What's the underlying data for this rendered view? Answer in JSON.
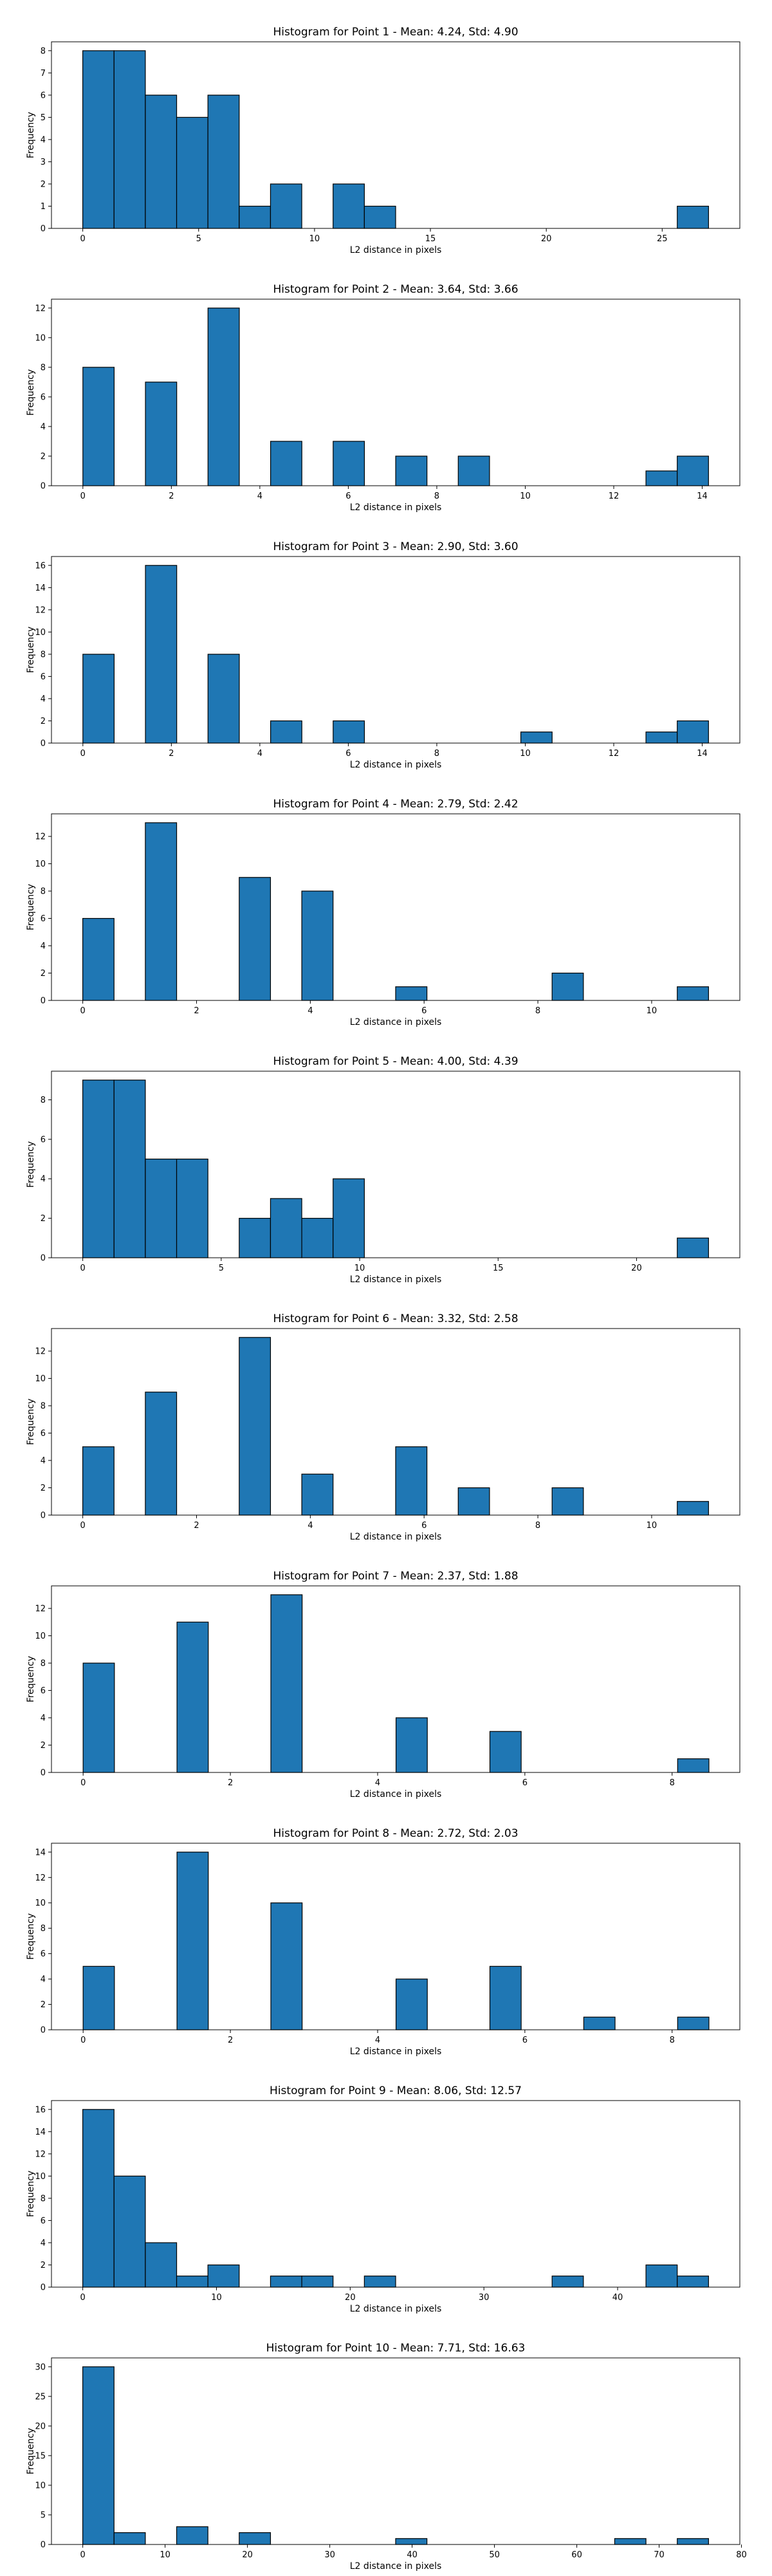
{
  "figure": {
    "background": "#ffffff",
    "bar_color": "#1f77b4",
    "edge_color": "#000000"
  },
  "chart_data": [
    {
      "type": "bar",
      "title": "Histogram for Point 1 - Mean: 4.24, Std: 4.90",
      "xlabel": "L2 distance in pixels",
      "ylabel": "Frequency",
      "xlim": [
        -1.35,
        28.35
      ],
      "ylim": [
        0,
        8.4
      ],
      "xticks": [
        0,
        5,
        10,
        15,
        20,
        25
      ],
      "yticks": [
        0,
        1,
        2,
        3,
        4,
        5,
        6,
        7,
        8
      ],
      "bin_edges": [
        0,
        1.35,
        2.7,
        4.05,
        5.4,
        6.75,
        8.1,
        9.45,
        10.8,
        12.15,
        13.5,
        14.85,
        16.2,
        17.55,
        18.9,
        20.25,
        21.6,
        22.95,
        24.3,
        25.65,
        27
      ],
      "values": [
        8,
        8,
        6,
        5,
        6,
        1,
        2,
        0,
        2,
        1,
        0,
        0,
        0,
        0,
        0,
        0,
        0,
        0,
        0,
        1
      ]
    },
    {
      "type": "bar",
      "title": "Histogram for Point 2 - Mean: 3.64, Std: 3.66",
      "xlabel": "L2 distance in pixels",
      "ylabel": "Frequency",
      "xlim": [
        -0.71,
        14.85
      ],
      "ylim": [
        0,
        12.6
      ],
      "xticks": [
        0,
        2,
        4,
        6,
        8,
        10,
        12,
        14
      ],
      "yticks": [
        0,
        2,
        4,
        6,
        8,
        10,
        12
      ],
      "bin_edges": [
        0,
        0.707,
        1.414,
        2.121,
        2.828,
        3.536,
        4.243,
        4.95,
        5.657,
        6.364,
        7.071,
        7.778,
        8.485,
        9.192,
        9.899,
        10.607,
        11.314,
        12.021,
        12.728,
        13.435,
        14.142
      ],
      "values": [
        8,
        0,
        7,
        0,
        12,
        0,
        3,
        0,
        3,
        0,
        2,
        0,
        2,
        0,
        0,
        0,
        0,
        0,
        1,
        2
      ]
    },
    {
      "type": "bar",
      "title": "Histogram for Point 3 - Mean: 2.90, Std: 3.60",
      "xlabel": "L2 distance in pixels",
      "ylabel": "Frequency",
      "xlim": [
        -0.71,
        14.85
      ],
      "ylim": [
        0,
        16.8
      ],
      "xticks": [
        0,
        2,
        4,
        6,
        8,
        10,
        12,
        14
      ],
      "yticks": [
        0,
        2,
        4,
        6,
        8,
        10,
        12,
        14,
        16
      ],
      "bin_edges": [
        0,
        0.707,
        1.414,
        2.121,
        2.828,
        3.536,
        4.243,
        4.95,
        5.657,
        6.364,
        7.071,
        7.778,
        8.485,
        9.192,
        9.899,
        10.607,
        11.314,
        12.021,
        12.728,
        13.435,
        14.142
      ],
      "values": [
        8,
        0,
        16,
        0,
        8,
        0,
        2,
        0,
        2,
        0,
        0,
        0,
        0,
        0,
        1,
        0,
        0,
        0,
        1,
        2
      ]
    },
    {
      "type": "bar",
      "title": "Histogram for Point 4 - Mean: 2.79, Std: 2.42",
      "xlabel": "L2 distance in pixels",
      "ylabel": "Frequency",
      "xlim": [
        -0.55,
        11.55
      ],
      "ylim": [
        0,
        13.65
      ],
      "xticks": [
        0,
        2,
        4,
        6,
        8,
        10
      ],
      "yticks": [
        0,
        2,
        4,
        6,
        8,
        10,
        12
      ],
      "bin_edges": [
        0,
        0.55,
        1.1,
        1.65,
        2.2,
        2.75,
        3.3,
        3.85,
        4.4,
        4.95,
        5.5,
        6.05,
        6.6,
        7.15,
        7.7,
        8.25,
        8.8,
        9.35,
        9.9,
        10.45,
        11
      ],
      "values": [
        6,
        0,
        13,
        0,
        0,
        9,
        0,
        8,
        0,
        0,
        1,
        0,
        0,
        0,
        0,
        2,
        0,
        0,
        0,
        1
      ]
    },
    {
      "type": "bar",
      "title": "Histogram for Point 5 - Mean: 4.00, Std: 4.39",
      "xlabel": "L2 distance in pixels",
      "ylabel": "Frequency",
      "xlim": [
        -1.13,
        23.73
      ],
      "ylim": [
        0,
        9.45
      ],
      "xticks": [
        0,
        5,
        10,
        15,
        20
      ],
      "yticks": [
        0,
        2,
        4,
        6,
        8
      ],
      "bin_edges": [
        0,
        1.13,
        2.26,
        3.39,
        4.52,
        5.65,
        6.78,
        7.91,
        9.04,
        10.17,
        11.3,
        12.43,
        13.56,
        14.69,
        15.82,
        16.95,
        18.08,
        19.21,
        20.34,
        21.47,
        22.6
      ],
      "values": [
        9,
        9,
        5,
        5,
        0,
        2,
        3,
        2,
        4,
        0,
        0,
        0,
        0,
        0,
        0,
        0,
        0,
        0,
        0,
        1
      ]
    },
    {
      "type": "bar",
      "title": "Histogram for Point 6 - Mean: 3.32, Std: 2.58",
      "xlabel": "L2 distance in pixels",
      "ylabel": "Frequency",
      "xlim": [
        -0.55,
        11.55
      ],
      "ylim": [
        0,
        13.65
      ],
      "xticks": [
        0,
        2,
        4,
        6,
        8,
        10
      ],
      "yticks": [
        0,
        2,
        4,
        6,
        8,
        10,
        12
      ],
      "bin_edges": [
        0,
        0.55,
        1.1,
        1.65,
        2.2,
        2.75,
        3.3,
        3.85,
        4.4,
        4.95,
        5.5,
        6.05,
        6.6,
        7.15,
        7.7,
        8.25,
        8.8,
        9.35,
        9.9,
        10.45,
        11
      ],
      "values": [
        5,
        0,
        9,
        0,
        0,
        13,
        0,
        3,
        0,
        0,
        5,
        0,
        2,
        0,
        0,
        2,
        0,
        0,
        0,
        1
      ]
    },
    {
      "type": "bar",
      "title": "Histogram for Point 7 - Mean: 2.37, Std: 1.88",
      "xlabel": "L2 distance in pixels",
      "ylabel": "Frequency",
      "xlim": [
        -0.43,
        8.92
      ],
      "ylim": [
        0,
        13.65
      ],
      "xticks": [
        0,
        2,
        4,
        6,
        8
      ],
      "yticks": [
        0,
        2,
        4,
        6,
        8,
        10,
        12
      ],
      "bin_edges": [
        0,
        0.425,
        0.85,
        1.275,
        1.7,
        2.125,
        2.55,
        2.975,
        3.4,
        3.825,
        4.25,
        4.675,
        5.1,
        5.525,
        5.95,
        6.375,
        6.8,
        7.225,
        7.65,
        8.075,
        8.5
      ],
      "values": [
        8,
        0,
        0,
        11,
        0,
        0,
        13,
        0,
        0,
        0,
        4,
        0,
        0,
        3,
        0,
        0,
        0,
        0,
        0,
        1
      ]
    },
    {
      "type": "bar",
      "title": "Histogram for Point 8 - Mean: 2.72, Std: 2.03",
      "xlabel": "L2 distance in pixels",
      "ylabel": "Frequency",
      "xlim": [
        -0.43,
        8.92
      ],
      "ylim": [
        0,
        14.7
      ],
      "xticks": [
        0,
        2,
        4,
        6,
        8
      ],
      "yticks": [
        0,
        2,
        4,
        6,
        8,
        10,
        12,
        14
      ],
      "bin_edges": [
        0,
        0.425,
        0.85,
        1.275,
        1.7,
        2.125,
        2.55,
        2.975,
        3.4,
        3.825,
        4.25,
        4.675,
        5.1,
        5.525,
        5.95,
        6.375,
        6.8,
        7.225,
        7.65,
        8.075,
        8.5
      ],
      "values": [
        5,
        0,
        0,
        14,
        0,
        0,
        10,
        0,
        0,
        0,
        4,
        0,
        0,
        5,
        0,
        0,
        1,
        0,
        0,
        1
      ]
    },
    {
      "type": "bar",
      "title": "Histogram for Point 9 - Mean: 8.06, Std: 12.57",
      "xlabel": "L2 distance in pixels",
      "ylabel": "Frequency",
      "xlim": [
        -2.34,
        49.14
      ],
      "ylim": [
        0,
        16.8
      ],
      "xticks": [
        0,
        10,
        20,
        30,
        40
      ],
      "yticks": [
        0,
        2,
        4,
        6,
        8,
        10,
        12,
        14,
        16
      ],
      "bin_edges": [
        0,
        2.34,
        4.68,
        7.02,
        9.36,
        11.7,
        14.04,
        16.38,
        18.72,
        21.06,
        23.4,
        25.74,
        28.08,
        30.42,
        32.76,
        35.1,
        37.44,
        39.78,
        42.12,
        44.46,
        46.8
      ],
      "values": [
        16,
        10,
        4,
        1,
        2,
        0,
        1,
        1,
        0,
        1,
        0,
        0,
        0,
        0,
        0,
        1,
        0,
        0,
        2,
        1
      ]
    },
    {
      "type": "bar",
      "title": "Histogram for Point 10 - Mean: 7.71, Std: 16.63",
      "xlabel": "L2 distance in pixels",
      "ylabel": "Frequency",
      "xlim": [
        -3.8,
        79.8
      ],
      "ylim": [
        0,
        31.5
      ],
      "xticks": [
        0,
        10,
        20,
        30,
        40,
        50,
        60,
        70,
        80
      ],
      "yticks": [
        0,
        5,
        10,
        15,
        20,
        25,
        30
      ],
      "bin_edges": [
        0,
        3.8,
        7.6,
        11.4,
        15.2,
        19,
        22.8,
        26.6,
        30.4,
        34.2,
        38,
        41.8,
        45.6,
        49.4,
        53.2,
        57,
        60.8,
        64.6,
        68.4,
        72.2,
        76
      ],
      "values": [
        30,
        2,
        0,
        3,
        0,
        2,
        0,
        0,
        0,
        0,
        1,
        0,
        0,
        0,
        0,
        0,
        0,
        1,
        0,
        1
      ]
    }
  ]
}
